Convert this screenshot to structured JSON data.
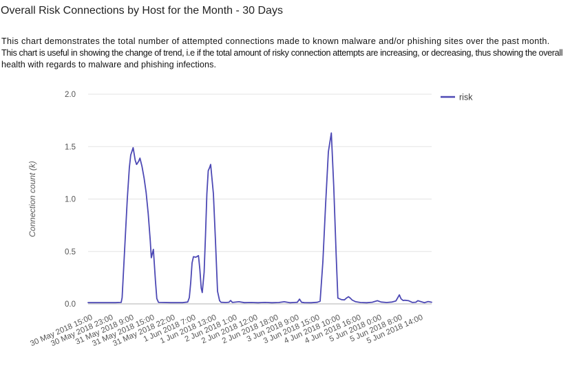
{
  "page": {
    "title": "Overall Risk Connections by Host for the Month - 30 Days",
    "description_lines": [
      "This chart demonstrates the total number of attempted connections made to known malware and/or phishing sites over the past month.",
      "This chart is useful in showing the change of trend, i.e if the total amount of risky connection attempts are increasing, or decreasing, thus showing the overall",
      "health with regards to malware and phishing infections."
    ]
  },
  "chart_data": {
    "type": "line",
    "title": "",
    "xlabel": "",
    "ylabel": "Connection count (k)",
    "ylim": [
      0,
      2.0
    ],
    "yticks": [
      "2.0",
      "1.5",
      "1.0",
      "0.5",
      "0.0"
    ],
    "x_tick_labels": [
      "30 May 2018 15:00",
      "30 May 2018 23:00",
      "31 May 2018 9:00",
      "31 May 2018 15:00",
      "31 May 2018 22:00",
      "1 Jun 2018 7:00",
      "1 Jun 2018 13:00",
      "2 Jun 2018 1:00",
      "2 Jun 2018 12:00",
      "2 Jun 2018 18:00",
      "3 Jun 2018 9:00",
      "3 Jun 2018 15:00",
      "4 Jun 2018 10:00",
      "4 Jun 2018 16:00",
      "5 Jun 2018 0:00",
      "5 Jun 2018 8:00",
      "5 Jun 2018 14:00"
    ],
    "legend": {
      "label": "risk",
      "position": "top-right"
    },
    "grid": "horizontal-only",
    "colors": {
      "series": "#4c48b4",
      "grid": "#e3e3e3",
      "zero_line": "#b0b0b0",
      "tick_text": "#545454",
      "axis_title": "#5c5c5c",
      "legend_text": "#3c3c3c"
    },
    "series": [
      {
        "name": "risk",
        "points": [
          [
            0.0,
            0.012
          ],
          [
            0.04,
            0.012
          ],
          [
            0.08,
            0.012
          ],
          [
            0.0962,
            0.014
          ],
          [
            0.099,
            0.06
          ],
          [
            0.106,
            0.5
          ],
          [
            0.114,
            1.0
          ],
          [
            0.12,
            1.3
          ],
          [
            0.124,
            1.42
          ],
          [
            0.131,
            1.49
          ],
          [
            0.137,
            1.37
          ],
          [
            0.141,
            1.33
          ],
          [
            0.147,
            1.36
          ],
          [
            0.151,
            1.39
          ],
          [
            0.157,
            1.31
          ],
          [
            0.163,
            1.2
          ],
          [
            0.169,
            1.06
          ],
          [
            0.175,
            0.86
          ],
          [
            0.181,
            0.6
          ],
          [
            0.184,
            0.44
          ],
          [
            0.19,
            0.52
          ],
          [
            0.196,
            0.22
          ],
          [
            0.2,
            0.05
          ],
          [
            0.205,
            0.014
          ],
          [
            0.24,
            0.012
          ],
          [
            0.275,
            0.012
          ],
          [
            0.29,
            0.018
          ],
          [
            0.2946,
            0.06
          ],
          [
            0.2986,
            0.2
          ],
          [
            0.3026,
            0.39
          ],
          [
            0.3066,
            0.45
          ],
          [
            0.3136,
            0.445
          ],
          [
            0.3213,
            0.46
          ],
          [
            0.3253,
            0.33
          ],
          [
            0.3293,
            0.15
          ],
          [
            0.3323,
            0.108
          ],
          [
            0.3377,
            0.3
          ],
          [
            0.3417,
            0.65
          ],
          [
            0.3457,
            1.05
          ],
          [
            0.3497,
            1.27
          ],
          [
            0.3537,
            1.3
          ],
          [
            0.3567,
            1.33
          ],
          [
            0.3647,
            1.05
          ],
          [
            0.3707,
            0.6
          ],
          [
            0.3767,
            0.12
          ],
          [
            0.3827,
            0.03
          ],
          [
            0.387,
            0.015
          ],
          [
            0.401,
            0.013
          ],
          [
            0.41,
            0.016
          ],
          [
            0.4148,
            0.032
          ],
          [
            0.42,
            0.014
          ],
          [
            0.439,
            0.02
          ],
          [
            0.455,
            0.012
          ],
          [
            0.475,
            0.013
          ],
          [
            0.495,
            0.011
          ],
          [
            0.515,
            0.014
          ],
          [
            0.535,
            0.011
          ],
          [
            0.555,
            0.013
          ],
          [
            0.571,
            0.02
          ],
          [
            0.587,
            0.011
          ],
          [
            0.603,
            0.014
          ],
          [
            0.609,
            0.015
          ],
          [
            0.6155,
            0.045
          ],
          [
            0.6215,
            0.015
          ],
          [
            0.629,
            0.012
          ],
          [
            0.649,
            0.011
          ],
          [
            0.667,
            0.015
          ],
          [
            0.6753,
            0.025
          ],
          [
            0.6833,
            0.4
          ],
          [
            0.6913,
            0.95
          ],
          [
            0.6993,
            1.45
          ],
          [
            0.708,
            1.63
          ],
          [
            0.715,
            1.12
          ],
          [
            0.722,
            0.47
          ],
          [
            0.727,
            0.055
          ],
          [
            0.738,
            0.04
          ],
          [
            0.746,
            0.038
          ],
          [
            0.753,
            0.058
          ],
          [
            0.758,
            0.068
          ],
          [
            0.763,
            0.056
          ],
          [
            0.769,
            0.036
          ],
          [
            0.779,
            0.02
          ],
          [
            0.793,
            0.013
          ],
          [
            0.811,
            0.011
          ],
          [
            0.827,
            0.016
          ],
          [
            0.842,
            0.03
          ],
          [
            0.853,
            0.018
          ],
          [
            0.869,
            0.013
          ],
          [
            0.885,
            0.018
          ],
          [
            0.896,
            0.028
          ],
          [
            0.902,
            0.062
          ],
          [
            0.906,
            0.086
          ],
          [
            0.911,
            0.048
          ],
          [
            0.917,
            0.032
          ],
          [
            0.921,
            0.035
          ],
          [
            0.933,
            0.03
          ],
          [
            0.944,
            0.014
          ],
          [
            0.954,
            0.016
          ],
          [
            0.96,
            0.03
          ],
          [
            0.968,
            0.022
          ],
          [
            0.979,
            0.012
          ],
          [
            0.99,
            0.022
          ],
          [
            1.0,
            0.016
          ]
        ]
      }
    ]
  }
}
